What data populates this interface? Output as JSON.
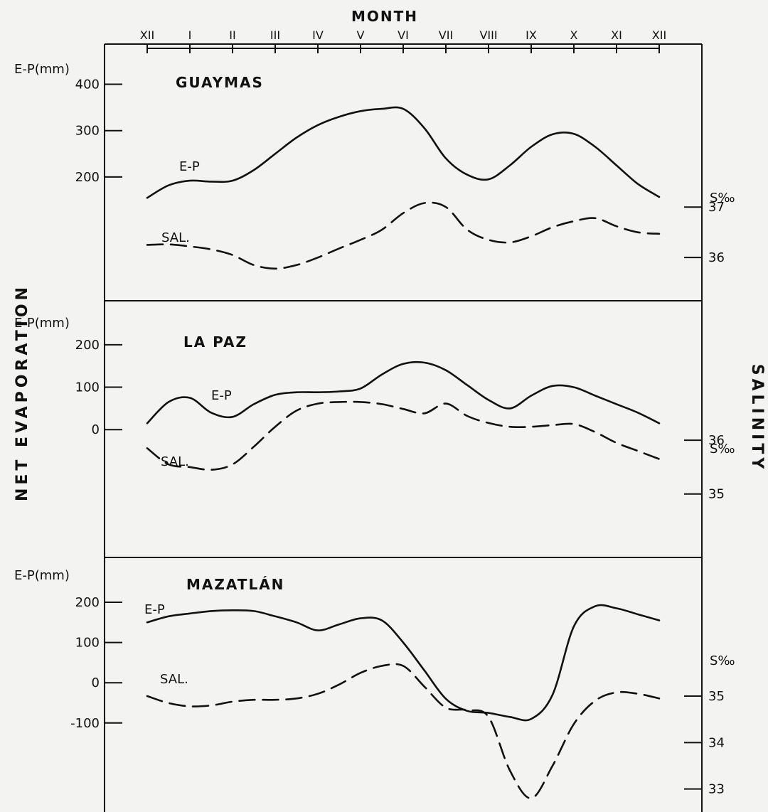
{
  "chart_data": {
    "type": "line",
    "x_title": "MONTH",
    "left_axis_title": "NET EVAPORATION",
    "right_axis_title": "SALINITY",
    "months": [
      "XII",
      "I",
      "II",
      "III",
      "IV",
      "V",
      "VI",
      "VII",
      "VIII",
      "IX",
      "X",
      "XI",
      "XII"
    ],
    "panels": [
      {
        "station": "GUAYMAS",
        "ep_unit_label": "E-P(mm)",
        "sal_unit_label": "S‰",
        "ep_ticks": [
          400,
          300,
          200
        ],
        "sal_ticks": [
          37,
          36
        ],
        "ep_range": [
          160,
          410
        ],
        "sal_range": [
          35.65,
          37.75
        ],
        "series": [
          {
            "name": "E-P",
            "style": "solid",
            "x": [
              0,
              0.5,
              1,
              1.5,
              2,
              2.5,
              3,
              3.5,
              4,
              4.5,
              5,
              5.5,
              6,
              6.5,
              7,
              7.5,
              8,
              8.5,
              9,
              9.5,
              10,
              10.5,
              11,
              11.5,
              12
            ],
            "values": [
              155,
              182,
              192,
              190,
              192,
              215,
              250,
              285,
              312,
              330,
              342,
              347,
              347,
              305,
              240,
              205,
              195,
              225,
              265,
              292,
              293,
              265,
              225,
              185,
              157
            ]
          },
          {
            "name": "SAL.",
            "style": "dashed",
            "x": [
              0,
              0.5,
              1,
              1.5,
              2,
              2.5,
              3,
              3.5,
              4,
              4.5,
              5,
              5.5,
              6,
              6.5,
              7,
              7.5,
              8,
              8.5,
              9,
              9.5,
              10,
              10.5,
              11,
              11.5,
              12
            ],
            "values": [
              36.25,
              36.26,
              36.22,
              36.16,
              36.05,
              35.85,
              35.78,
              35.85,
              36.0,
              36.18,
              36.35,
              36.55,
              36.88,
              37.08,
              37.0,
              36.55,
              36.35,
              36.3,
              36.42,
              36.6,
              36.72,
              36.78,
              36.62,
              36.5,
              36.47
            ]
          }
        ]
      },
      {
        "station": "LA PAZ",
        "ep_unit_label": "E-P(mm)",
        "sal_unit_label": "S‰",
        "ep_ticks": [
          200,
          100,
          0
        ],
        "sal_ticks": [
          36,
          35
        ],
        "ep_range": [
          -60,
          225
        ],
        "sal_range": [
          34.6,
          36.9
        ],
        "series": [
          {
            "name": "E-P",
            "style": "solid",
            "x": [
              0,
              0.5,
              1,
              1.5,
              2,
              2.5,
              3,
              3.5,
              4,
              4.5,
              5,
              5.5,
              6,
              6.5,
              7,
              7.5,
              8,
              8.5,
              9,
              9.5,
              10,
              10.5,
              11,
              11.5,
              12
            ],
            "values": [
              15,
              65,
              75,
              40,
              30,
              60,
              82,
              88,
              88,
              90,
              97,
              130,
              155,
              158,
              140,
              105,
              70,
              50,
              80,
              103,
              100,
              80,
              60,
              40,
              15
            ]
          },
          {
            "name": "SAL.",
            "style": "dashed",
            "x": [
              0,
              0.5,
              1,
              1.5,
              2,
              2.5,
              3,
              3.5,
              4,
              4.5,
              5,
              5.5,
              6,
              6.5,
              7,
              7.5,
              8,
              8.5,
              9,
              9.5,
              10,
              10.5,
              11,
              11.5,
              12
            ],
            "values": [
              35.85,
              35.55,
              35.5,
              35.45,
              35.55,
              35.88,
              36.25,
              36.55,
              36.68,
              36.71,
              36.71,
              36.67,
              36.58,
              36.5,
              36.68,
              36.45,
              36.32,
              36.25,
              36.25,
              36.28,
              36.3,
              36.15,
              35.95,
              35.8,
              35.65
            ]
          }
        ]
      },
      {
        "station": "MAZATLÁN",
        "ep_unit_label": "E-P(mm)",
        "sal_unit_label": "S‰",
        "ep_ticks": [
          200,
          100,
          0,
          -100
        ],
        "sal_ticks": [
          35,
          34,
          33
        ],
        "ep_range": [
          -300,
          230
        ],
        "sal_range": [
          32,
          35.75
        ],
        "series": [
          {
            "name": "E-P",
            "style": "solid",
            "x": [
              0,
              0.5,
              1,
              1.5,
              2,
              2.5,
              3,
              3.5,
              4,
              4.5,
              5,
              5.5,
              6,
              6.5,
              7,
              7.5,
              8,
              8.5,
              9,
              9.5,
              10,
              10.5,
              11,
              11.5,
              12
            ],
            "values": [
              150,
              165,
              172,
              178,
              180,
              178,
              165,
              150,
              130,
              145,
              160,
              155,
              100,
              30,
              -40,
              -70,
              -75,
              -85,
              -90,
              -30,
              140,
              190,
              185,
              170,
              155
            ]
          },
          {
            "name": "SAL.",
            "style": "dashed",
            "x": [
              0,
              0.5,
              1,
              1.5,
              2,
              2.5,
              3,
              3.5,
              4,
              4.5,
              5,
              5.5,
              6,
              6.5,
              7,
              7.5,
              8,
              8.5,
              9,
              9.5,
              10,
              10.5,
              11,
              11.5,
              12
            ],
            "values": [
              35.0,
              34.85,
              34.78,
              34.8,
              34.88,
              34.92,
              34.92,
              34.95,
              35.05,
              35.25,
              35.5,
              35.65,
              35.65,
              35.2,
              34.75,
              34.7,
              34.55,
              33.4,
              32.8,
              33.5,
              34.4,
              34.9,
              35.08,
              35.05,
              34.95
            ]
          }
        ]
      }
    ]
  }
}
